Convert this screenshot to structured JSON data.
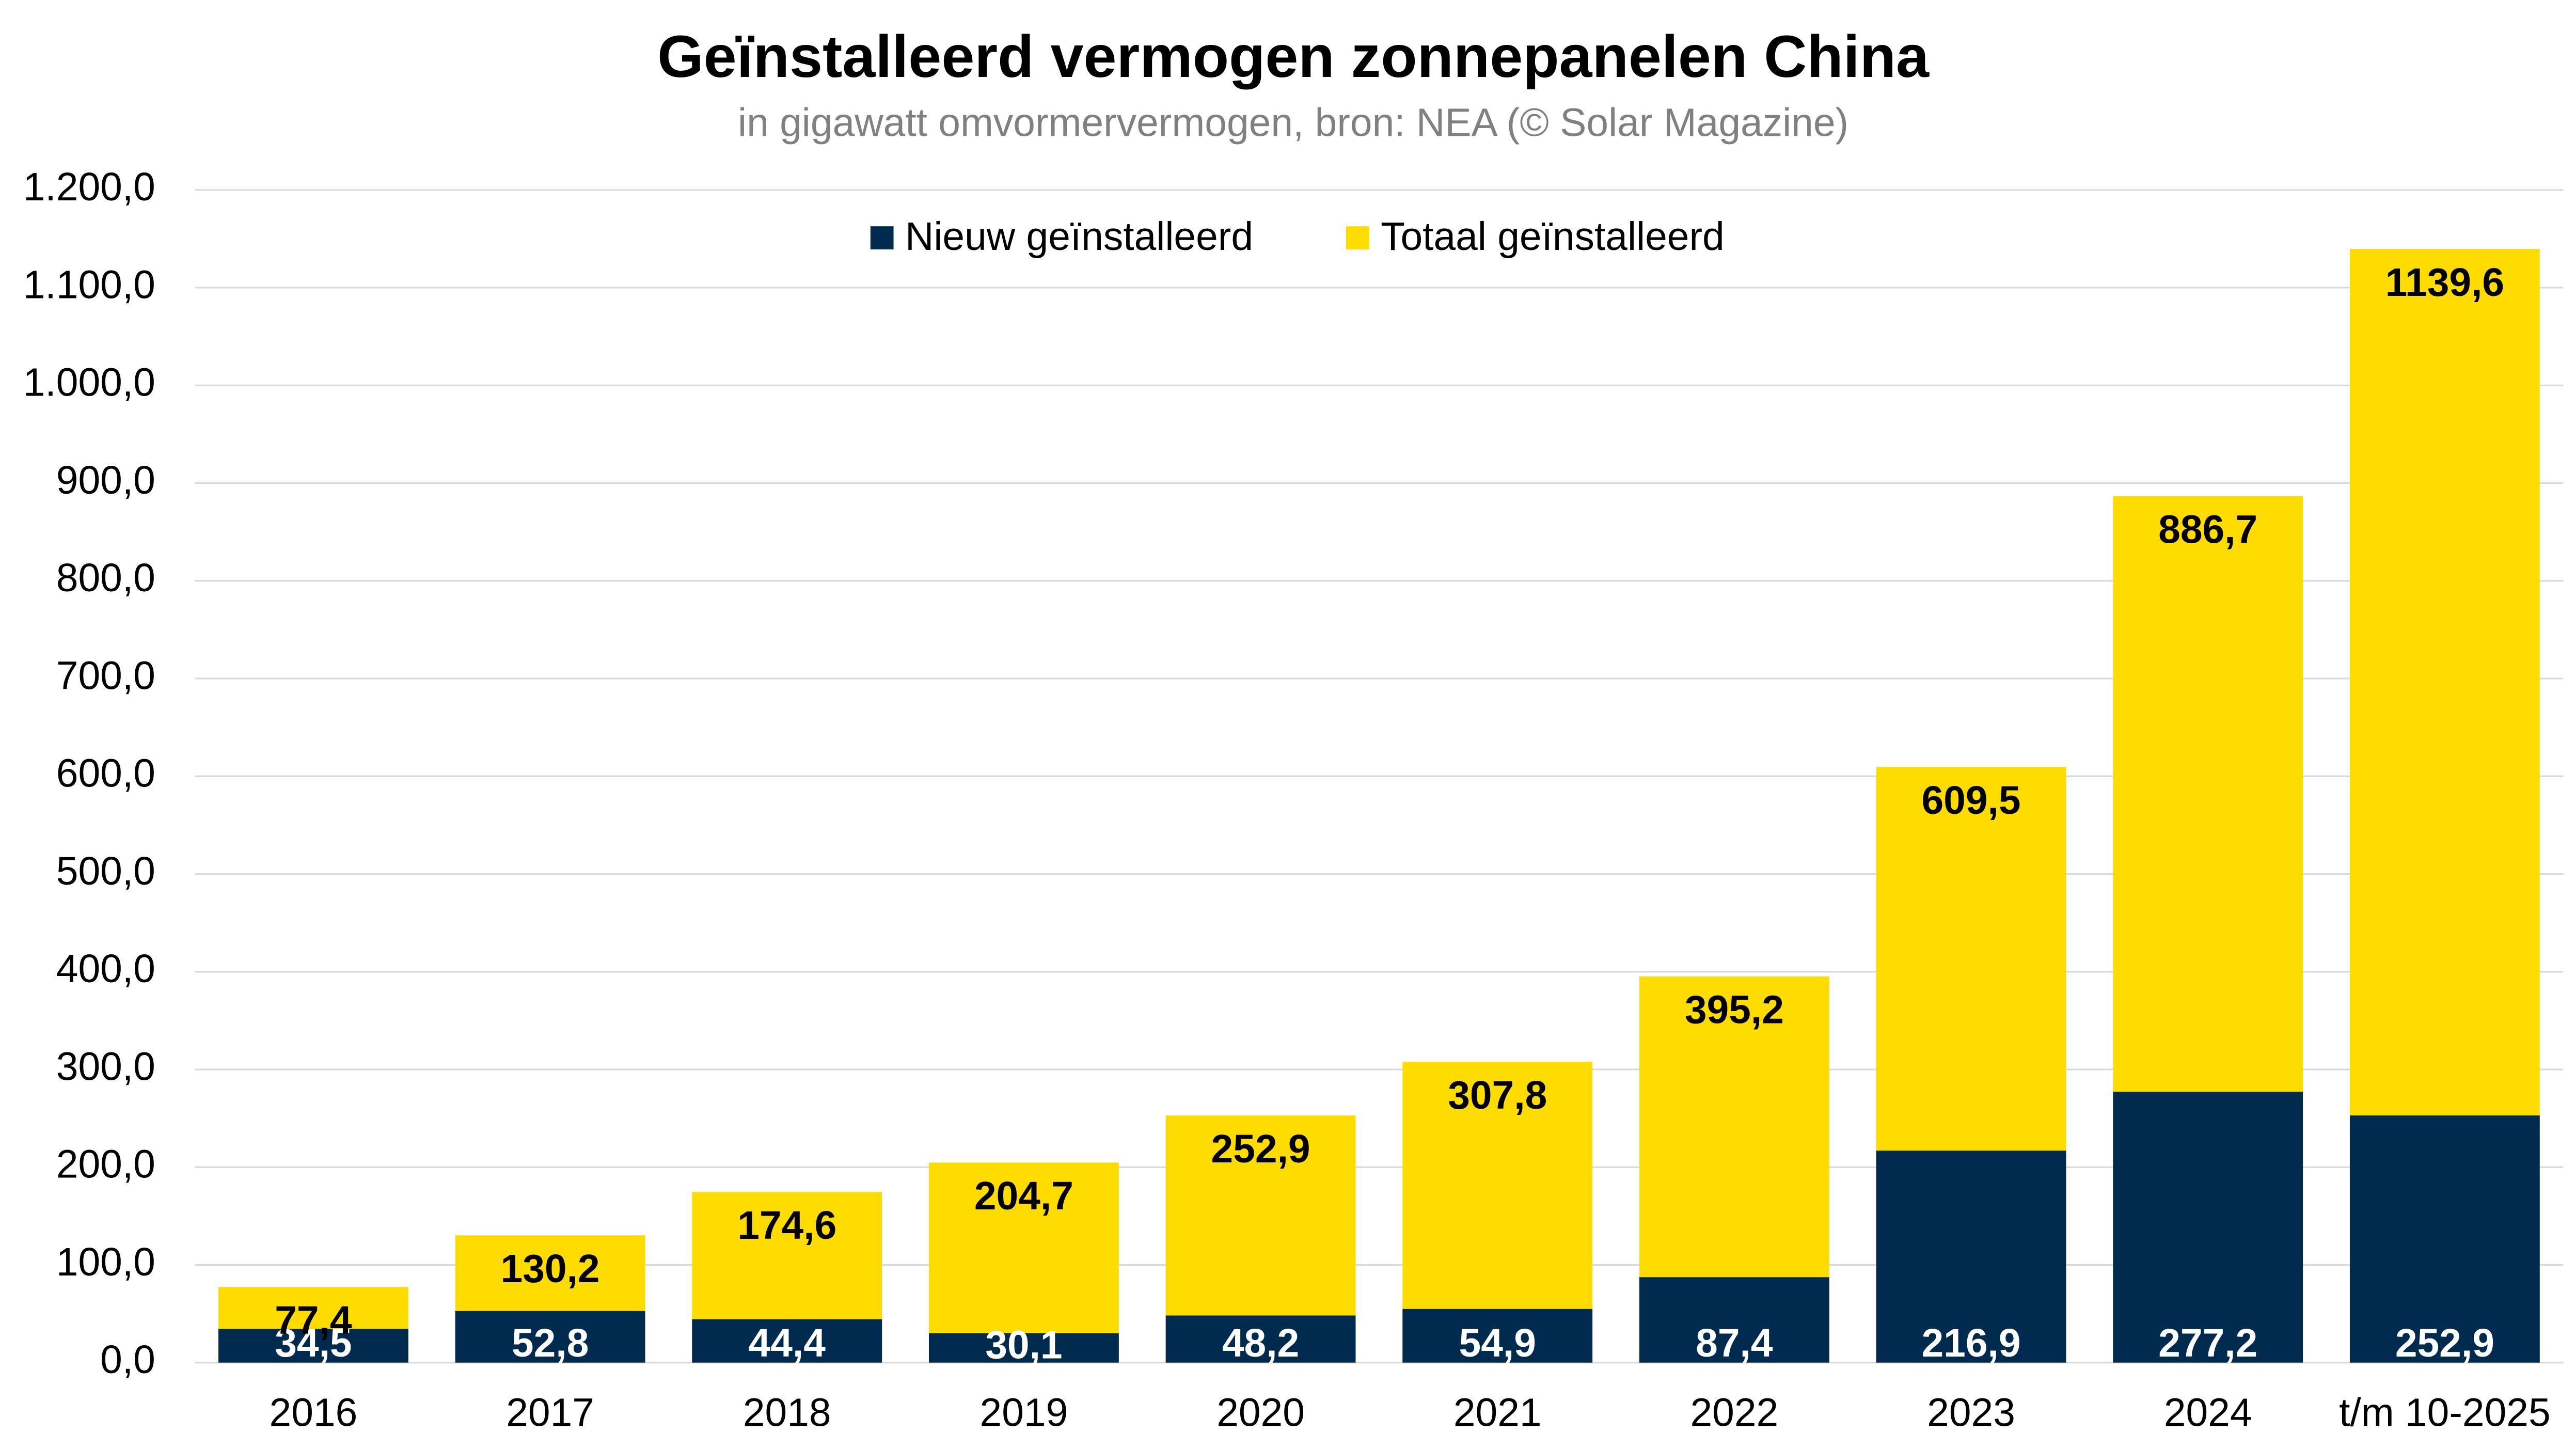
{
  "chart_data": {
    "type": "bar",
    "title": "Geïnstalleerd vermogen zonnepanelen China",
    "subtitle": "in gigawatt omvormervermogen, bron: NEA (© Solar Magazine)",
    "categories": [
      "2016",
      "2017",
      "2018",
      "2019",
      "2020",
      "2021",
      "2022",
      "2023",
      "2024",
      "t/m 10-2025"
    ],
    "series": [
      {
        "name": "Nieuw geïnstalleerd",
        "color": "#002b4e",
        "values": [
          34.5,
          52.8,
          44.4,
          30.1,
          48.2,
          54.9,
          87.4,
          216.9,
          277.2,
          252.9
        ],
        "value_labels": [
          "34,5",
          "52,8",
          "44,4",
          "30,1",
          "48,2",
          "54,9",
          "87,4",
          "216,9",
          "277,2",
          "252,9"
        ]
      },
      {
        "name": "Totaal geïnstalleerd",
        "color": "#ffdc00",
        "values": [
          77.4,
          130.2,
          174.6,
          204.7,
          252.9,
          307.8,
          395.2,
          609.5,
          886.7,
          1139.6
        ],
        "value_labels": [
          "77,4",
          "130,2",
          "174,6",
          "204,7",
          "252,9",
          "307,8",
          "395,2",
          "609,5",
          "886,7",
          "1139,6"
        ]
      }
    ],
    "ylim": [
      0,
      1200
    ],
    "yticks": [
      {
        "value": 0,
        "label": "0,0"
      },
      {
        "value": 100,
        "label": "100,0"
      },
      {
        "value": 200,
        "label": "200,0"
      },
      {
        "value": 300,
        "label": "300,0"
      },
      {
        "value": 400,
        "label": "400,0"
      },
      {
        "value": 500,
        "label": "500,0"
      },
      {
        "value": 600,
        "label": "600,0"
      },
      {
        "value": 700,
        "label": "700,0"
      },
      {
        "value": 800,
        "label": "800,0"
      },
      {
        "value": 900,
        "label": "900,0"
      },
      {
        "value": 1000,
        "label": "1.000,0"
      },
      {
        "value": 1100,
        "label": "1.100,0"
      },
      {
        "value": 1200,
        "label": "1.200,0"
      }
    ],
    "grid": true
  }
}
